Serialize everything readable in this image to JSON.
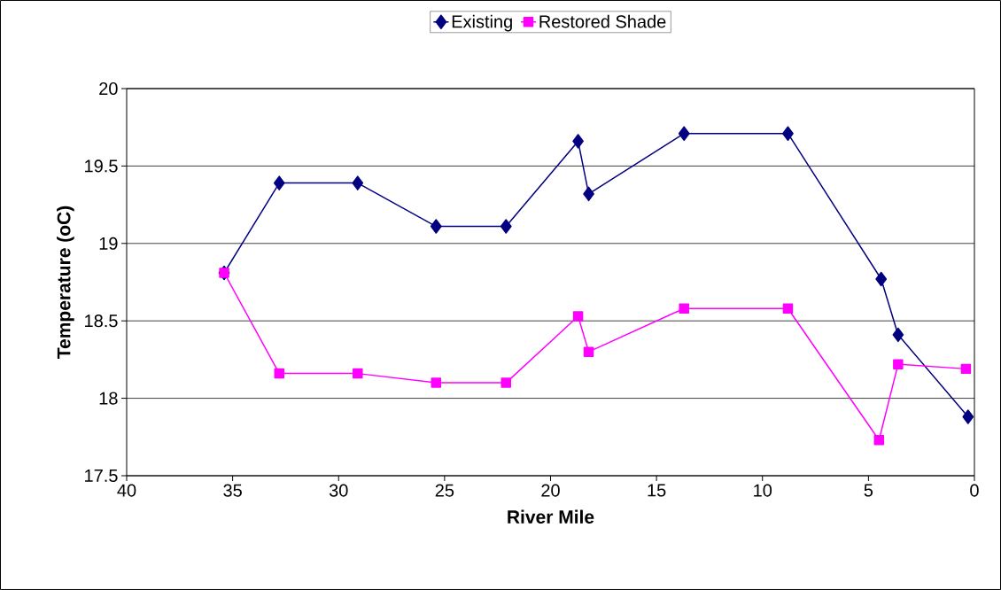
{
  "chart_data": {
    "type": "line",
    "xlabel": "River Mile",
    "ylabel": "Temperature (oC)",
    "xlim": [
      40,
      0
    ],
    "xticks": [
      40,
      35,
      30,
      25,
      20,
      15,
      10,
      5,
      0
    ],
    "ylim": [
      17.5,
      20
    ],
    "yticks": [
      17.5,
      18,
      18.5,
      19,
      19.5,
      20
    ],
    "grid": "y",
    "legend": "top",
    "line_style": "solid",
    "series": [
      {
        "name": "Existing",
        "color": "#000080",
        "marker": "diamond",
        "x": [
          35.4,
          32.8,
          29.1,
          25.4,
          22.1,
          18.7,
          18.2,
          13.7,
          8.8,
          4.4,
          3.6,
          0.3
        ],
        "values": [
          18.81,
          19.39,
          19.39,
          19.11,
          19.11,
          19.66,
          19.32,
          19.71,
          19.71,
          18.77,
          18.41,
          17.88
        ]
      },
      {
        "name": "Restored Shade",
        "color": "#ff00ff",
        "marker": "square",
        "x": [
          35.4,
          32.8,
          29.1,
          25.4,
          22.1,
          18.7,
          18.2,
          13.7,
          8.8,
          4.5,
          3.6,
          0.4
        ],
        "values": [
          18.81,
          18.16,
          18.16,
          18.1,
          18.1,
          18.53,
          18.3,
          18.58,
          18.58,
          17.73,
          18.22,
          18.19
        ]
      }
    ]
  }
}
